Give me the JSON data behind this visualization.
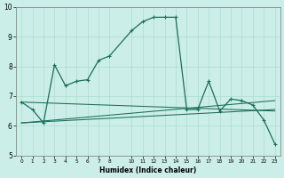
{
  "title": "",
  "xlabel": "Humidex (Indice chaleur)",
  "bg_color": "#cceee8",
  "grid_color": "#aaddcc",
  "line_color": "#1a6e5a",
  "xlim": [
    -0.5,
    23.5
  ],
  "ylim": [
    5,
    10
  ],
  "yticks": [
    5,
    6,
    7,
    8,
    9,
    10
  ],
  "xtick_locs": [
    0,
    1,
    2,
    3,
    4,
    5,
    6,
    7,
    8,
    10,
    11,
    12,
    13,
    14,
    15,
    16,
    17,
    18,
    19,
    20,
    21,
    22,
    23
  ],
  "xtick_labels": [
    "0",
    "1",
    "2",
    "3",
    "4",
    "5",
    "6",
    "7",
    "8",
    "10",
    "11",
    "12",
    "13",
    "14",
    "15",
    "16",
    "17",
    "18",
    "19",
    "20",
    "21",
    "22",
    "23"
  ],
  "main_x": [
    0,
    1,
    2,
    3,
    4,
    5,
    6,
    7,
    8,
    10,
    11,
    12,
    13,
    14,
    15,
    16,
    17,
    18,
    19,
    20,
    21,
    22,
    23
  ],
  "main_y": [
    6.8,
    6.55,
    6.1,
    8.05,
    7.35,
    7.5,
    7.55,
    8.2,
    8.35,
    9.2,
    9.5,
    9.65,
    9.65,
    9.65,
    6.55,
    6.55,
    7.5,
    6.5,
    6.9,
    6.85,
    6.7,
    6.2,
    5.4
  ],
  "trend1_x": [
    0,
    23
  ],
  "trend1_y": [
    6.8,
    6.5
  ],
  "trend2_x": [
    0,
    23
  ],
  "trend2_y": [
    6.1,
    6.55
  ],
  "trend3_x": [
    0,
    23
  ],
  "trend3_y": [
    6.1,
    6.85
  ]
}
